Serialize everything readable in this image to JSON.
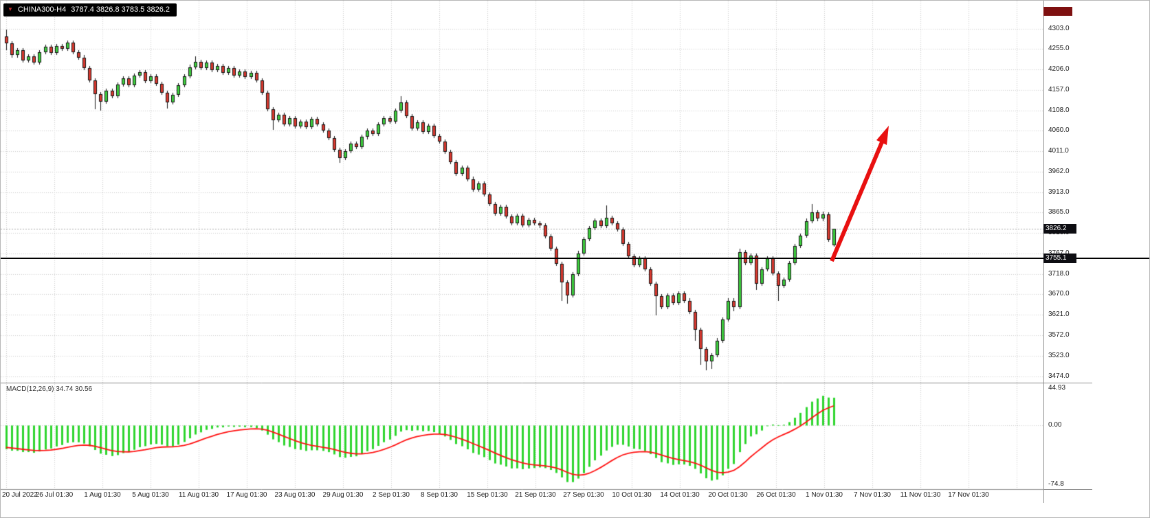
{
  "title_bar": {
    "symbol": "CHINA300-H4",
    "ohlc_text": "3787.4 3826.8 3783.5 3826.2",
    "dropdown_icon": "▼"
  },
  "price_axis": {
    "tick_labels": [
      "4303.0",
      "4255.0",
      "4206.0",
      "4157.0",
      "4108.0",
      "4060.0",
      "4011.0",
      "3962.0",
      "3913.0",
      "3865.0",
      "3816.0",
      "3767.0",
      "3718.0",
      "3670.0",
      "3621.0",
      "3572.0",
      "3523.0",
      "3474.0"
    ],
    "current_price_label": "3826.2",
    "hline_label": "3755.1"
  },
  "time_axis": {
    "tick_labels": [
      "20 Jul 2022",
      "26 Jul 01:30",
      "1 Aug 01:30",
      "5 Aug 01:30",
      "11 Aug 01:30",
      "17 Aug 01:30",
      "23 Aug 01:30",
      "29 Aug 01:30",
      "2 Sep 01:30",
      "8 Sep 01:30",
      "15 Sep 01:30",
      "21 Sep 01:30",
      "27 Sep 01:30",
      "10 Oct 01:30",
      "14 Oct 01:30",
      "20 Oct 01:30",
      "26 Oct 01:30",
      "1 Nov 01:30",
      "7 Nov 01:30",
      "11 Nov 01:30",
      "17 Nov 01:30"
    ]
  },
  "indicator_panel": {
    "label": "MACD(12,26,9)",
    "values_text": "34.74 30.56",
    "axis_max_label": "44.93",
    "axis_zero_label": "0.00",
    "axis_min_label": "-74.8"
  },
  "colors": {
    "bull_fill": "#3ecf3e",
    "bear_fill": "#d93a30",
    "candle_outline": "#111111",
    "grid": "#c9c9c9",
    "hline": "#000000",
    "current_price_line": "#a6a6a6",
    "macd_histogram": "#2ed52e",
    "macd_signal": "#ff0f0f",
    "arrow": "#e81010",
    "badge_bg": "#0d0d12",
    "badge_text": "#ffffff",
    "top_badge_bg": "#7e1010",
    "title_bg": "#000000",
    "title_text": "#ffffff",
    "dropdown_icon_color": "#c03030",
    "axis_text": "#1b1b1b"
  },
  "chart_data": {
    "type": "candlestick",
    "symbol": "CHINA300",
    "timeframe": "H4",
    "title": "CHINA300-H4",
    "current_ohlc": {
      "open": 3787.4,
      "high": 3826.8,
      "low": 3783.5,
      "close": 3826.2
    },
    "current_price": 3826.2,
    "horizontal_line_price": 3755.1,
    "price_range": [
      3474.0,
      4303.0
    ],
    "y_axis_ticks": [
      4303.0,
      4255.0,
      4206.0,
      4157.0,
      4108.0,
      4060.0,
      4011.0,
      3962.0,
      3913.0,
      3865.0,
      3816.0,
      3767.0,
      3718.0,
      3670.0,
      3621.0,
      3572.0,
      3523.0,
      3474.0
    ],
    "x_axis_ticks": [
      "20 Jul 2022",
      "26 Jul 01:30",
      "1 Aug 01:30",
      "5 Aug 01:30",
      "11 Aug 01:30",
      "17 Aug 01:30",
      "23 Aug 01:30",
      "29 Aug 01:30",
      "2 Sep 01:30",
      "8 Sep 01:30",
      "15 Sep 01:30",
      "21 Sep 01:30",
      "27 Sep 01:30",
      "10 Oct 01:30",
      "14 Oct 01:30",
      "20 Oct 01:30",
      "26 Oct 01:30",
      "1 Nov 01:30",
      "7 Nov 01:30",
      "11 Nov 01:30",
      "17 Nov 01:30"
    ],
    "grid": true,
    "annotations": [
      {
        "type": "arrow",
        "direction": "up-right",
        "color": "#e81010",
        "note": "bullish projection arrow from last candle"
      }
    ],
    "indicator": {
      "type": "MACD",
      "fast": 12,
      "slow": 26,
      "signal": 9,
      "current_macd": 34.74,
      "current_signal": 30.56,
      "axis_range": [
        -74.8,
        44.93
      ]
    },
    "candles_ohlc": [
      [
        4285,
        4302,
        4252,
        4268
      ],
      [
        4268,
        4273,
        4235,
        4240
      ],
      [
        4240,
        4257,
        4235,
        4252
      ],
      [
        4252,
        4257,
        4223,
        4228
      ],
      [
        4228,
        4243,
        4223,
        4238
      ],
      [
        4238,
        4243,
        4217,
        4222
      ],
      [
        4222,
        4253,
        4217,
        4248
      ],
      [
        4248,
        4265,
        4243,
        4260
      ],
      [
        4260,
        4265,
        4240,
        4245
      ],
      [
        4245,
        4267,
        4240,
        4262
      ],
      [
        4262,
        4267,
        4250,
        4255
      ],
      [
        4255,
        4275,
        4250,
        4270
      ],
      [
        4270,
        4275,
        4243,
        4248
      ],
      [
        4248,
        4253,
        4230,
        4235
      ],
      [
        4235,
        4240,
        4205,
        4210
      ],
      [
        4210,
        4215,
        4175,
        4180
      ],
      [
        4180,
        4185,
        4112,
        4148
      ],
      [
        4148,
        4153,
        4108,
        4130
      ],
      [
        4130,
        4160,
        4125,
        4155
      ],
      [
        4155,
        4160,
        4137,
        4142
      ],
      [
        4142,
        4175,
        4137,
        4170
      ],
      [
        4170,
        4190,
        4165,
        4185
      ],
      [
        4185,
        4190,
        4163,
        4168
      ],
      [
        4168,
        4197,
        4163,
        4192
      ],
      [
        4192,
        4205,
        4187,
        4200
      ],
      [
        4200,
        4205,
        4173,
        4178
      ],
      [
        4178,
        4195,
        4173,
        4190
      ],
      [
        4190,
        4195,
        4167,
        4172
      ],
      [
        4172,
        4177,
        4145,
        4150
      ],
      [
        4150,
        4155,
        4113,
        4128
      ],
      [
        4128,
        4150,
        4123,
        4145
      ],
      [
        4145,
        4173,
        4140,
        4168
      ],
      [
        4168,
        4195,
        4163,
        4190
      ],
      [
        4190,
        4217,
        4185,
        4212
      ],
      [
        4212,
        4237,
        4207,
        4225
      ],
      [
        4225,
        4230,
        4205,
        4210
      ],
      [
        4210,
        4227,
        4205,
        4222
      ],
      [
        4222,
        4227,
        4200,
        4205
      ],
      [
        4205,
        4220,
        4200,
        4215
      ],
      [
        4215,
        4220,
        4193,
        4198
      ],
      [
        4198,
        4215,
        4193,
        4210
      ],
      [
        4210,
        4215,
        4187,
        4192
      ],
      [
        4192,
        4207,
        4187,
        4202
      ],
      [
        4202,
        4207,
        4183,
        4188
      ],
      [
        4188,
        4203,
        4183,
        4198
      ],
      [
        4198,
        4203,
        4175,
        4180
      ],
      [
        4180,
        4185,
        4145,
        4150
      ],
      [
        4150,
        4155,
        4107,
        4112
      ],
      [
        4112,
        4117,
        4062,
        4085
      ],
      [
        4085,
        4103,
        4080,
        4098
      ],
      [
        4098,
        4103,
        4070,
        4075
      ],
      [
        4075,
        4095,
        4070,
        4090
      ],
      [
        4090,
        4095,
        4065,
        4070
      ],
      [
        4070,
        4087,
        4065,
        4082
      ],
      [
        4082,
        4087,
        4063,
        4068
      ],
      [
        4068,
        4093,
        4063,
        4088
      ],
      [
        4088,
        4093,
        4070,
        4075
      ],
      [
        4075,
        4080,
        4055,
        4060
      ],
      [
        4060,
        4065,
        4037,
        4042
      ],
      [
        4042,
        4047,
        4010,
        4015
      ],
      [
        4015,
        4020,
        3984,
        3995
      ],
      [
        3995,
        4017,
        3990,
        4012
      ],
      [
        4012,
        4035,
        4007,
        4030
      ],
      [
        4030,
        4035,
        4017,
        4022
      ],
      [
        4022,
        4050,
        4017,
        4045
      ],
      [
        4045,
        4065,
        4040,
        4060
      ],
      [
        4060,
        4065,
        4047,
        4052
      ],
      [
        4052,
        4080,
        4047,
        4075
      ],
      [
        4075,
        4095,
        4070,
        4090
      ],
      [
        4090,
        4095,
        4077,
        4082
      ],
      [
        4082,
        4113,
        4077,
        4108
      ],
      [
        4108,
        4142,
        4103,
        4128
      ],
      [
        4128,
        4133,
        4090,
        4095
      ],
      [
        4095,
        4100,
        4060,
        4065
      ],
      [
        4065,
        4085,
        4060,
        4080
      ],
      [
        4080,
        4085,
        4053,
        4058
      ],
      [
        4058,
        4077,
        4053,
        4072
      ],
      [
        4072,
        4077,
        4043,
        4048
      ],
      [
        4048,
        4053,
        4030,
        4035
      ],
      [
        4035,
        4040,
        4005,
        4010
      ],
      [
        4010,
        4015,
        3980,
        3985
      ],
      [
        3985,
        3990,
        3953,
        3958
      ],
      [
        3958,
        3977,
        3953,
        3972
      ],
      [
        3972,
        3977,
        3940,
        3945
      ],
      [
        3945,
        3950,
        3915,
        3920
      ],
      [
        3920,
        3940,
        3915,
        3935
      ],
      [
        3935,
        3940,
        3903,
        3908
      ],
      [
        3908,
        3913,
        3880,
        3885
      ],
      [
        3885,
        3890,
        3857,
        3862
      ],
      [
        3862,
        3883,
        3857,
        3878
      ],
      [
        3878,
        3883,
        3850,
        3855
      ],
      [
        3855,
        3860,
        3835,
        3840
      ],
      [
        3840,
        3863,
        3835,
        3858
      ],
      [
        3858,
        3863,
        3830,
        3835
      ],
      [
        3835,
        3853,
        3830,
        3848
      ],
      [
        3848,
        3853,
        3835,
        3840
      ],
      [
        3840,
        3845,
        3828,
        3835
      ],
      [
        3835,
        3840,
        3803,
        3808
      ],
      [
        3808,
        3813,
        3773,
        3778
      ],
      [
        3778,
        3783,
        3737,
        3742
      ],
      [
        3742,
        3747,
        3655,
        3698
      ],
      [
        3698,
        3703,
        3648,
        3668
      ],
      [
        3668,
        3723,
        3663,
        3718
      ],
      [
        3718,
        3773,
        3713,
        3768
      ],
      [
        3768,
        3807,
        3763,
        3802
      ],
      [
        3802,
        3833,
        3797,
        3828
      ],
      [
        3828,
        3851,
        3823,
        3846
      ],
      [
        3846,
        3851,
        3828,
        3833
      ],
      [
        3833,
        3882,
        3828,
        3852
      ],
      [
        3852,
        3857,
        3835,
        3840
      ],
      [
        3840,
        3845,
        3820,
        3825
      ],
      [
        3825,
        3830,
        3785,
        3790
      ],
      [
        3790,
        3795,
        3755,
        3760
      ],
      [
        3760,
        3765,
        3735,
        3740
      ],
      [
        3740,
        3760,
        3735,
        3755
      ],
      [
        3755,
        3760,
        3725,
        3730
      ],
      [
        3730,
        3735,
        3690,
        3695
      ],
      [
        3695,
        3700,
        3620,
        3665
      ],
      [
        3665,
        3670,
        3635,
        3640
      ],
      [
        3640,
        3673,
        3635,
        3668
      ],
      [
        3668,
        3673,
        3645,
        3650
      ],
      [
        3650,
        3677,
        3645,
        3672
      ],
      [
        3672,
        3677,
        3650,
        3655
      ],
      [
        3655,
        3660,
        3623,
        3628
      ],
      [
        3628,
        3633,
        3560,
        3585
      ],
      [
        3585,
        3590,
        3502,
        3540
      ],
      [
        3540,
        3545,
        3488,
        3510
      ],
      [
        3510,
        3530,
        3492,
        3525
      ],
      [
        3525,
        3565,
        3520,
        3560
      ],
      [
        3560,
        3615,
        3555,
        3610
      ],
      [
        3610,
        3660,
        3605,
        3655
      ],
      [
        3655,
        3660,
        3630,
        3640
      ],
      [
        3640,
        3778,
        3634,
        3770
      ],
      [
        3770,
        3775,
        3740,
        3745
      ],
      [
        3745,
        3767,
        3740,
        3762
      ],
      [
        3762,
        3767,
        3680,
        3695
      ],
      [
        3695,
        3735,
        3690,
        3730
      ],
      [
        3730,
        3760,
        3725,
        3755
      ],
      [
        3755,
        3760,
        3715,
        3720
      ],
      [
        3720,
        3725,
        3655,
        3690
      ],
      [
        3690,
        3710,
        3685,
        3705
      ],
      [
        3705,
        3750,
        3700,
        3745
      ],
      [
        3745,
        3790,
        3740,
        3785
      ],
      [
        3785,
        3815,
        3780,
        3810
      ],
      [
        3810,
        3850,
        3805,
        3845
      ],
      [
        3845,
        3885,
        3840,
        3865
      ],
      [
        3865,
        3870,
        3845,
        3850
      ],
      [
        3850,
        3868,
        3845,
        3860
      ],
      [
        3860,
        3865,
        3795,
        3800
      ],
      [
        3787.4,
        3826.8,
        3783.5,
        3826.2
      ]
    ]
  }
}
